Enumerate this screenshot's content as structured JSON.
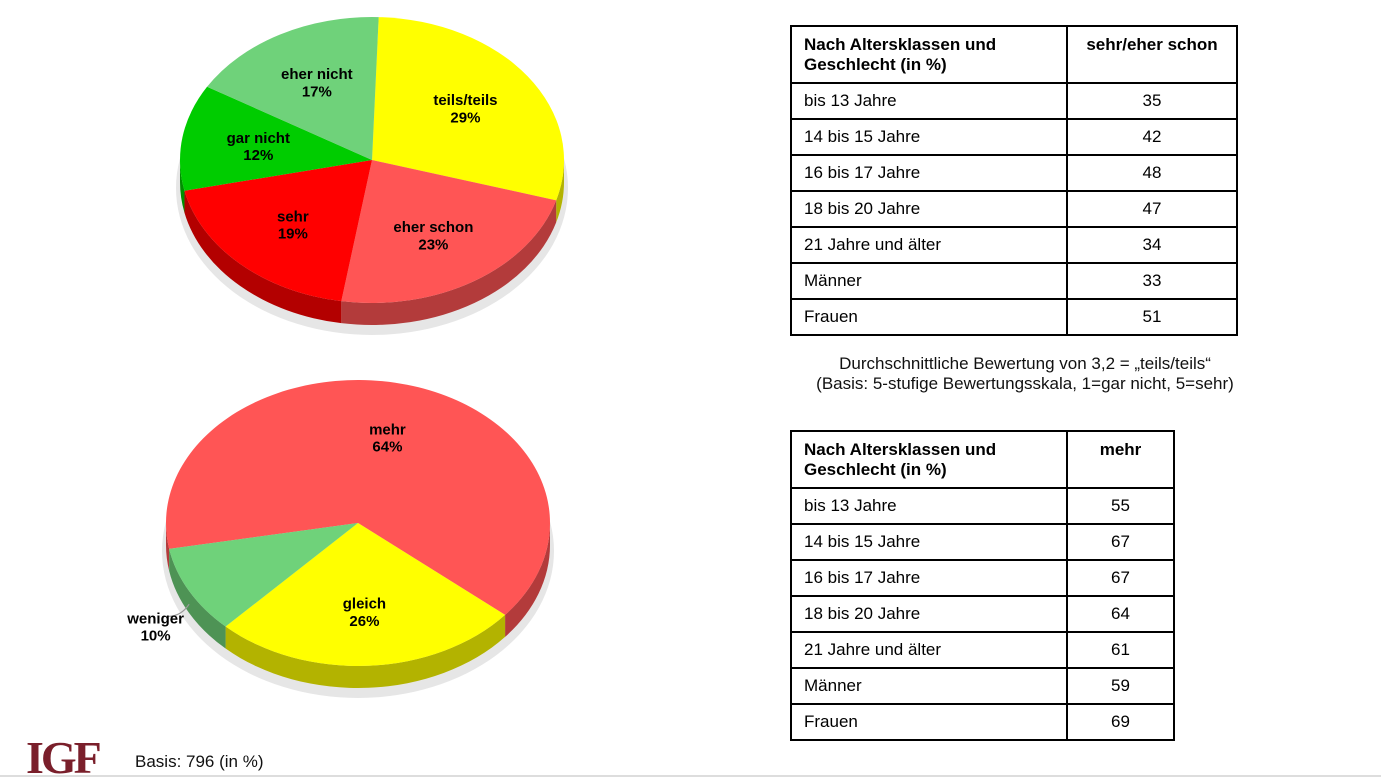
{
  "chart_data": [
    {
      "type": "pie",
      "categories": [
        "teils/teils",
        "eher schon",
        "sehr",
        "gar nicht",
        "eher nicht"
      ],
      "values": [
        29,
        23,
        19,
        12,
        17
      ],
      "value_labels": [
        "29%",
        "23%",
        "19%",
        "12%",
        "17%"
      ],
      "colors": [
        "#ffff00",
        "#ff5555",
        "#ff0000",
        "#00cc00",
        "#6fd27a"
      ]
    },
    {
      "type": "pie",
      "categories": [
        "mehr",
        "gleich",
        "weniger"
      ],
      "values": [
        64,
        26,
        10
      ],
      "value_labels": [
        "64%",
        "26%",
        "10%"
      ],
      "colors": [
        "#ff5555",
        "#ffff00",
        "#6fd27a"
      ]
    }
  ],
  "tables": [
    {
      "header": [
        "Nach Altersklassen und Geschlecht  (in %)",
        "sehr/eher schon"
      ],
      "rows": [
        [
          "bis 13 Jahre",
          "35"
        ],
        [
          "14 bis 15 Jahre",
          "42"
        ],
        [
          "16 bis 17 Jahre",
          "48"
        ],
        [
          "18 bis 20 Jahre",
          "47"
        ],
        [
          "21 Jahre und älter",
          "34"
        ],
        [
          "Männer",
          "33"
        ],
        [
          "Frauen",
          "51"
        ]
      ]
    },
    {
      "header": [
        "Nach Altersklassen und Geschlecht (in %)",
        "mehr"
      ],
      "rows": [
        [
          "bis 13 Jahre",
          "55"
        ],
        [
          "14 bis 15 Jahre",
          "67"
        ],
        [
          "16 bis 17 Jahre",
          "67"
        ],
        [
          "18 bis 20 Jahre",
          "64"
        ],
        [
          "21 Jahre und älter",
          "61"
        ],
        [
          "Männer",
          "59"
        ],
        [
          "Frauen",
          "69"
        ]
      ]
    }
  ],
  "note": [
    "Durchschnittliche Bewertung von 3,2 = „teils/teils“",
    "(Basis: 5-stufige Bewertungsskala, 1=gar nicht, 5=sehr)"
  ],
  "footer": {
    "logo": "IGF",
    "basis": "Basis: 796 (in %)"
  }
}
